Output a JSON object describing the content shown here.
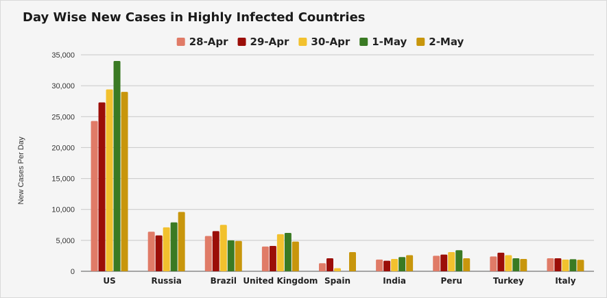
{
  "chart_data": {
    "type": "bar",
    "title": "Day Wise New Cases in Highly Infected Countries",
    "xlabel": "",
    "ylabel": "New Cases Per Day",
    "ylim": [
      0,
      35000
    ],
    "yticks": [
      "0",
      "5,000",
      "10,000",
      "15,000",
      "20,000",
      "25,000",
      "30,000",
      "35,000"
    ],
    "legend_position": "top-center",
    "grid": true,
    "categories": [
      "US",
      "Russia",
      "Brazil",
      "United Kingdom",
      "Spain",
      "India",
      "Peru",
      "Turkey",
      "Italy"
    ],
    "series": [
      {
        "name": "28-Apr",
        "color": "#e07b67",
        "values": [
          24300,
          6400,
          5700,
          4000,
          1300,
          1900,
          2500,
          2400,
          2100
        ]
      },
      {
        "name": "29-Apr",
        "color": "#9b0e08",
        "values": [
          27300,
          5800,
          6500,
          4100,
          2100,
          1700,
          2700,
          3000,
          2100
        ]
      },
      {
        "name": "30-Apr",
        "color": "#f2c12e",
        "values": [
          29400,
          7100,
          7500,
          6000,
          500,
          2000,
          3100,
          2600,
          1900
        ]
      },
      {
        "name": "1-May",
        "color": "#3a7a23",
        "values": [
          34000,
          7900,
          5000,
          6200,
          0,
          2300,
          3400,
          2100,
          1950
        ]
      },
      {
        "name": "2-May",
        "color": "#c8960c",
        "values": [
          29000,
          9600,
          4900,
          4800,
          3100,
          2600,
          2100,
          2000,
          1850
        ]
      }
    ]
  }
}
